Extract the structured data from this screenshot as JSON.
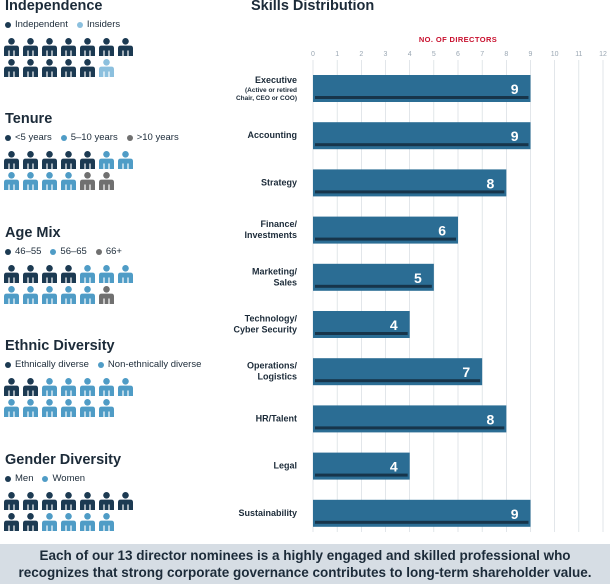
{
  "colors": {
    "navy": "#1c3a52",
    "medium_blue": "#4f9cc6",
    "light_blue": "#8cc0de",
    "gray": "#707070",
    "bar": "#2b6d94",
    "bar_shadow": "#17354b",
    "accent_red": "#c8102e",
    "grid": "#cfd6dc"
  },
  "independence": {
    "title": "Independence",
    "legend": [
      {
        "label": "Independent",
        "color": "navy"
      },
      {
        "label": "Insiders",
        "color": "light_blue"
      }
    ],
    "rows": [
      [
        "navy",
        "navy",
        "navy",
        "navy",
        "navy",
        "navy",
        "navy"
      ],
      [
        "navy",
        "navy",
        "navy",
        "navy",
        "navy",
        "light_blue"
      ]
    ]
  },
  "tenure": {
    "title": "Tenure",
    "legend": [
      {
        "label": "<5 years",
        "color": "navy"
      },
      {
        "label": "5–10 years",
        "color": "medium_blue"
      },
      {
        "label": ">10 years",
        "color": "gray"
      }
    ],
    "rows": [
      [
        "navy",
        "navy",
        "navy",
        "navy",
        "navy",
        "medium_blue",
        "medium_blue"
      ],
      [
        "medium_blue",
        "medium_blue",
        "medium_blue",
        "medium_blue",
        "gray",
        "gray"
      ]
    ]
  },
  "age_mix": {
    "title": "Age Mix",
    "legend": [
      {
        "label": "46–55",
        "color": "navy"
      },
      {
        "label": "56–65",
        "color": "medium_blue"
      },
      {
        "label": "66+",
        "color": "gray"
      }
    ],
    "rows": [
      [
        "navy",
        "navy",
        "navy",
        "navy",
        "medium_blue",
        "medium_blue",
        "medium_blue"
      ],
      [
        "medium_blue",
        "medium_blue",
        "medium_blue",
        "medium_blue",
        "medium_blue",
        "gray"
      ]
    ]
  },
  "ethnic_diversity": {
    "title": "Ethnic Diversity",
    "legend": [
      {
        "label": "Ethnically diverse",
        "color": "navy"
      },
      {
        "label": "Non-ethnically diverse",
        "color": "medium_blue"
      }
    ],
    "rows": [
      [
        "navy",
        "navy",
        "medium_blue",
        "medium_blue",
        "medium_blue",
        "medium_blue",
        "medium_blue"
      ],
      [
        "medium_blue",
        "medium_blue",
        "medium_blue",
        "medium_blue",
        "medium_blue",
        "medium_blue"
      ]
    ]
  },
  "gender_diversity": {
    "title": "Gender Diversity",
    "legend": [
      {
        "label": "Men",
        "color": "navy"
      },
      {
        "label": "Women",
        "color": "medium_blue"
      }
    ],
    "rows": [
      [
        "navy",
        "navy",
        "navy",
        "navy",
        "navy",
        "navy",
        "navy"
      ],
      [
        "navy",
        "navy",
        "medium_blue",
        "medium_blue",
        "medium_blue",
        "medium_blue"
      ]
    ]
  },
  "chart_data": {
    "type": "bar",
    "orientation": "horizontal",
    "title": "Skills Distribution",
    "xlabel": "NO. OF DIRECTORS",
    "xlim": [
      0,
      12
    ],
    "xticks": [
      0,
      1,
      2,
      3,
      4,
      5,
      6,
      7,
      8,
      9,
      10,
      11,
      12
    ],
    "grid": true,
    "categories": [
      {
        "lines": [
          "Executive"
        ],
        "sub": [
          "(Active or retired",
          "Chair, CEO or COO)"
        ]
      },
      {
        "lines": [
          "Accounting"
        ],
        "sub": []
      },
      {
        "lines": [
          "Strategy"
        ],
        "sub": []
      },
      {
        "lines": [
          "Finance/",
          "Investments"
        ],
        "sub": []
      },
      {
        "lines": [
          "Marketing/",
          "Sales"
        ],
        "sub": []
      },
      {
        "lines": [
          "Technology/",
          "Cyber Security"
        ],
        "sub": []
      },
      {
        "lines": [
          "Operations/",
          "Logistics"
        ],
        "sub": []
      },
      {
        "lines": [
          "HR/Talent"
        ],
        "sub": []
      },
      {
        "lines": [
          "Legal"
        ],
        "sub": []
      },
      {
        "lines": [
          "Sustainability"
        ],
        "sub": []
      }
    ],
    "values": [
      9,
      9,
      8,
      6,
      5,
      4,
      7,
      8,
      4,
      9
    ]
  },
  "footer": {
    "line1": "Each of our 13 director nominees is a highly engaged and skilled professional who",
    "line2": "recognizes that strong corporate governance contributes to long-term shareholder value."
  }
}
